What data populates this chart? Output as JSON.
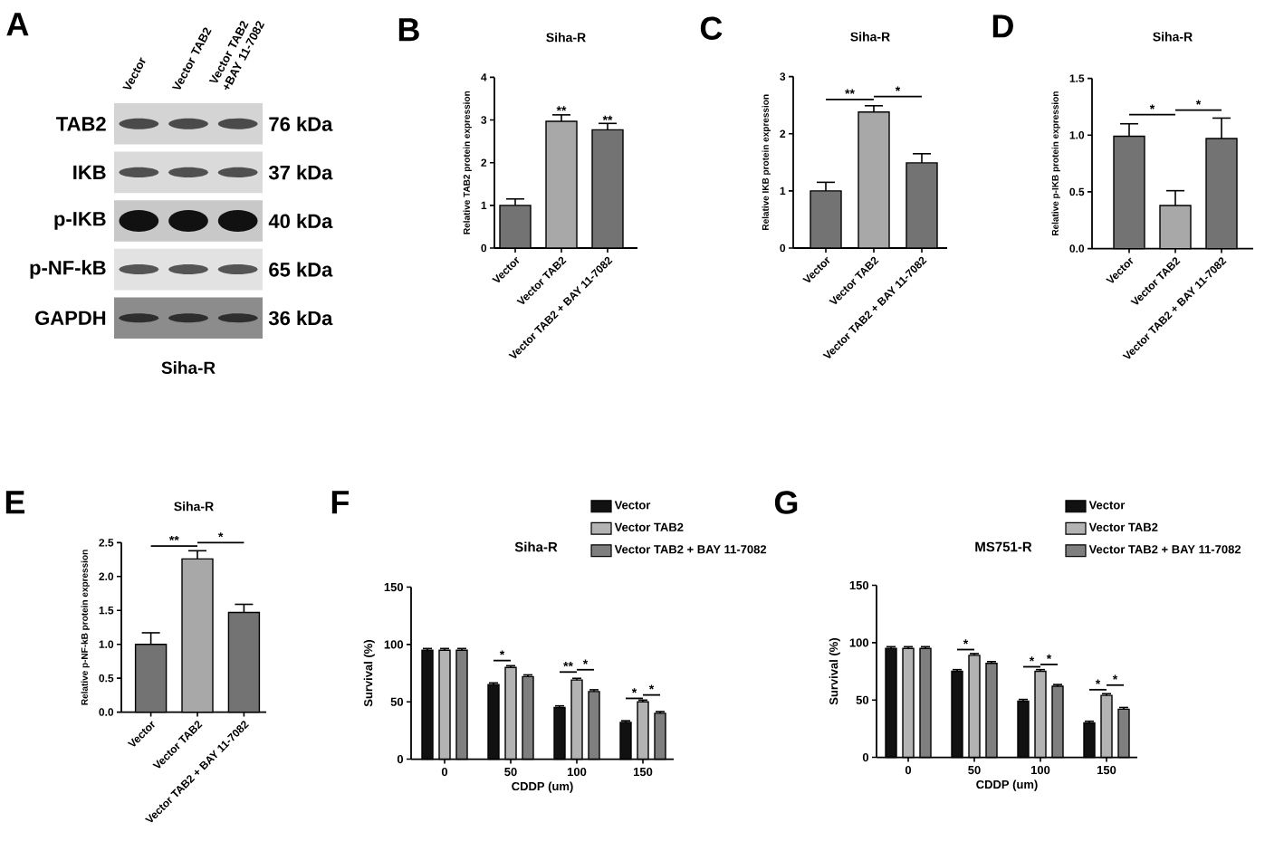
{
  "chart_data": [
    {
      "type": "other",
      "title": "Siha-R",
      "categories": [
        "Vector",
        "Vector TAB2",
        "Vector TAB2 +BAY 11-7082"
      ],
      "y_categories": [
        "TAB2",
        "IKB",
        "p-IKB",
        "p-NF-kB",
        "GAPDH"
      ],
      "y2_categories": [
        "76 kDa",
        "37 kDa",
        "40 kDa",
        "65 kDa",
        "36 kDa"
      ],
      "annotations": [
        "A"
      ]
    },
    {
      "type": "bar",
      "title": "Siha-R",
      "ylabel": "Relative TAB2 protein expression",
      "categories": [
        "Vector",
        "Vector TAB2",
        "Vector TAB2 + BAY 11-7082"
      ],
      "values": [
        1.0,
        2.97,
        2.77
      ],
      "errors": [
        0.15,
        0.15,
        0.15
      ],
      "colors": [
        "#737373",
        "#a8a8a8",
        "#737373"
      ],
      "ylim": [
        0,
        4
      ],
      "yticks": [
        0,
        1,
        2,
        3,
        4
      ],
      "annotations": [
        "B",
        {
          "text": "**",
          "x": "Vector TAB2",
          "y": 3.22
        },
        {
          "text": "**",
          "x": "Vector TAB2 + BAY 11-7082",
          "y": 3.0
        }
      ]
    },
    {
      "type": "bar",
      "title": "Siha-R",
      "ylabel": "Relative IKB protein expression",
      "categories": [
        "Vector",
        "Vector TAB2",
        "Vector TAB2 + BAY 11-7082"
      ],
      "values": [
        1.0,
        2.38,
        1.49
      ],
      "errors": [
        0.15,
        0.11,
        0.16
      ],
      "colors": [
        "#737373",
        "#a8a8a8",
        "#737373"
      ],
      "ylim": [
        0,
        3
      ],
      "yticks": [
        0,
        1,
        2,
        3
      ],
      "annotations": [
        "C",
        "**",
        "*"
      ]
    },
    {
      "type": "bar",
      "title": "Siha-R",
      "ylabel": "Relative p-IKB protein expression",
      "categories": [
        "Vector",
        "Vector TAB2",
        "Vector TAB2 + BAY 11-7082"
      ],
      "values": [
        0.99,
        0.38,
        0.97
      ],
      "errors": [
        0.11,
        0.13,
        0.18
      ],
      "colors": [
        "#737373",
        "#a8a8a8",
        "#737373"
      ],
      "ylim": [
        0,
        1.5
      ],
      "yticks": [
        {
          "value": 0,
          "label": "0.0"
        },
        {
          "value": 0.5,
          "label": "0.5"
        },
        {
          "value": 1,
          "label": "1.0"
        },
        {
          "value": 1.5,
          "label": "1.5"
        }
      ],
      "annotations": [
        "D",
        "*",
        "*"
      ]
    },
    {
      "type": "bar",
      "title": "Siha-R",
      "ylabel": "Relative p-NF-kB protein expression",
      "categories": [
        "Vector",
        "Vector TAB2",
        "Vector TAB2 + BAY 11-7082"
      ],
      "values": [
        1.0,
        2.26,
        1.47
      ],
      "errors": [
        0.17,
        0.12,
        0.12
      ],
      "colors": [
        "#737373",
        "#a8a8a8",
        "#737373"
      ],
      "ylim": [
        0,
        2.5
      ],
      "yticks": [
        {
          "value": 0,
          "label": "0.0"
        },
        {
          "value": 0.5,
          "label": "0.5"
        },
        {
          "value": 1,
          "label": "1.0"
        },
        {
          "value": 1.5,
          "label": "1.5"
        },
        {
          "value": 2,
          "label": "2.0"
        },
        {
          "value": 2.5,
          "label": "2.5"
        }
      ],
      "annotations": [
        "E",
        "**",
        "*"
      ]
    },
    {
      "type": "bar",
      "title": "Siha-R",
      "xlabel": "CDDP (um)",
      "ylabel": "Survival (%)",
      "categories": [
        "0",
        "50",
        "100",
        "150"
      ],
      "series": [
        {
          "name": "Vector",
          "color": "#111111",
          "values": [
            95,
            65,
            45,
            32
          ],
          "errors": [
            1.5,
            1.5,
            1.5,
            1.5
          ]
        },
        {
          "name": "Vector TAB2",
          "color": "#b3b3b3",
          "values": [
            95,
            80,
            69,
            50
          ],
          "errors": [
            1.5,
            1.5,
            1.5,
            1.5
          ]
        },
        {
          "name": "Vector TAB2 + BAY 11-7082",
          "color": "#7f7f7f",
          "values": [
            95,
            72,
            59,
            40
          ],
          "errors": [
            1.5,
            1.5,
            1.5,
            1.5
          ]
        }
      ],
      "ylim": [
        0,
        150
      ],
      "yticks": [
        0,
        50,
        100,
        150
      ],
      "legend": "top right",
      "annotations": [
        "F",
        {
          "text": "*",
          "x": "50",
          "y": 86
        },
        {
          "text": "**",
          "x": "100",
          "y": 76
        },
        {
          "text": "*",
          "x": "100",
          "y": 78
        },
        {
          "text": "*",
          "x": "150",
          "y": 53
        },
        {
          "text": "*",
          "x": "150",
          "y": 56
        }
      ]
    },
    {
      "type": "bar",
      "title": "MS751-R",
      "xlabel": "CDDP (um)",
      "ylabel": "Survival (%)",
      "categories": [
        "0",
        "50",
        "100",
        "150"
      ],
      "series": [
        {
          "name": "Vector",
          "color": "#111111",
          "values": [
            95,
            75,
            49,
            30
          ],
          "errors": [
            1.5,
            1.5,
            1.5,
            1.5
          ]
        },
        {
          "name": "Vector TAB2",
          "color": "#b3b3b3",
          "values": [
            95,
            89,
            75,
            54
          ],
          "errors": [
            1.5,
            1.5,
            1.5,
            1.5
          ]
        },
        {
          "name": "Vector TAB2 + BAY 11-7082",
          "color": "#7f7f7f",
          "values": [
            95,
            82,
            62,
            42
          ],
          "errors": [
            1.5,
            1.5,
            1.5,
            1.5
          ]
        }
      ],
      "ylim": [
        0,
        150
      ],
      "yticks": [
        0,
        50,
        100,
        150
      ],
      "legend": "top right",
      "annotations": [
        "G",
        {
          "text": "*",
          "x": "50",
          "y": 94
        },
        {
          "text": "*",
          "x": "100",
          "y": 79
        },
        {
          "text": "*",
          "x": "100",
          "y": 81
        },
        {
          "text": "*",
          "x": "150",
          "y": 59
        },
        {
          "text": "*",
          "x": "150",
          "y": 63
        }
      ]
    }
  ]
}
